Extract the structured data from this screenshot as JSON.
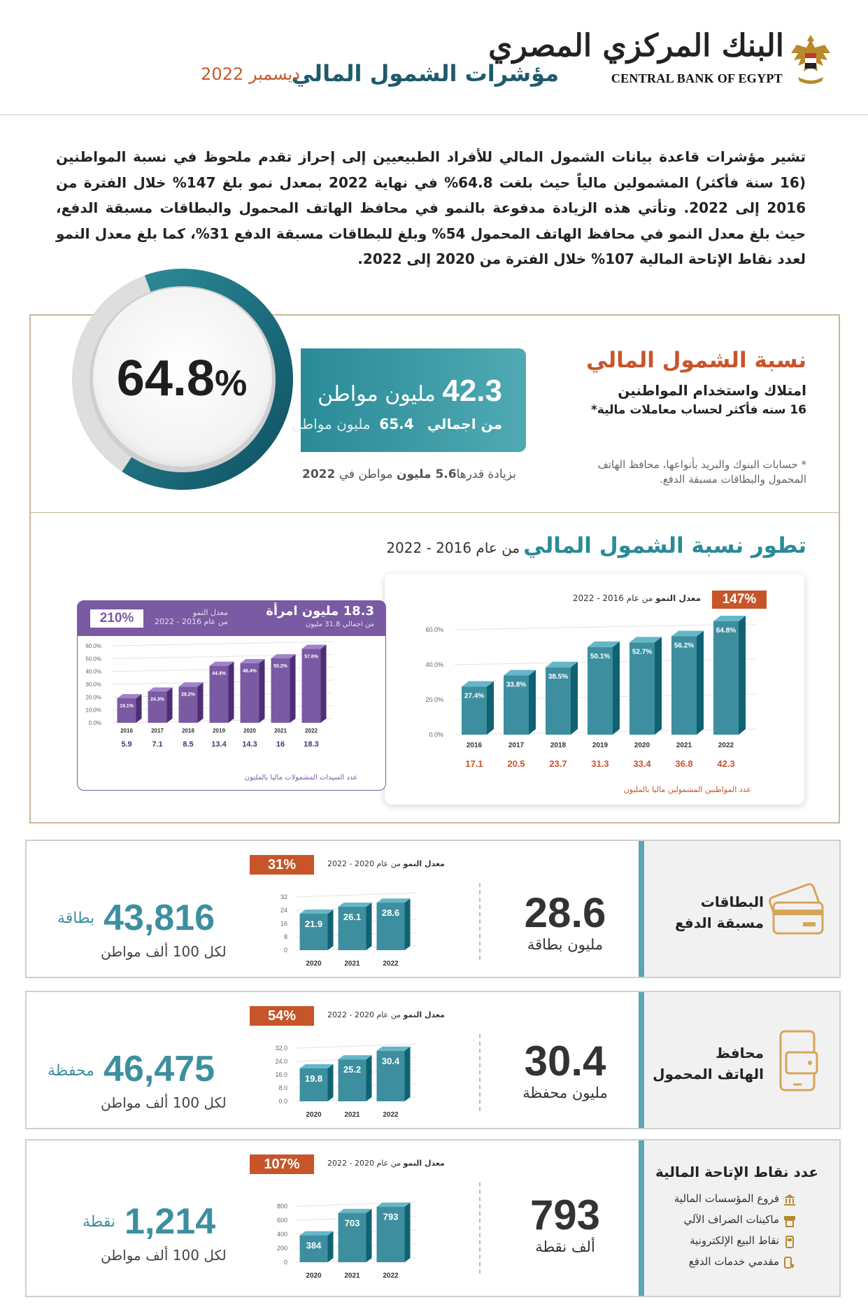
{
  "header": {
    "bank_name_ar": "البنك المركزي المصري",
    "bank_name_en": "CENTRAL BANK OF EGYPT",
    "title": "مؤشرات الشمول المالي",
    "date": "ديسمبر 2022"
  },
  "intro": "تشير مؤشرات قاعدة بيانات الشمول المالي للأفراد الطبيعيين إلى إحراز تقدم ملحوظ في نسبة المواطنين (16 سنة فأكثر) المشمولين مالياً حيث بلغت 64.8% في نهاية 2022 بمعدل نمو بلغ 147% خلال الفترة من 2016 إلى 2022. وتأتي هذه الزيادة مدفوعة بالنمو في محافظ الهاتف المحمول والبطاقات مسبقة الدفع، حيث بلغ معدل النمو في محافظ الهاتف المحمول 54% وبلغ للبطاقات مسبقة الدفع 31%، كما بلغ معدل النمو لعدد نقاط الإتاحة المالية 107% خلال الفترة من 2020 إلى 2022.",
  "inclusion": {
    "rate_value": "64.8",
    "rate_unit": "%",
    "rate_fraction": 0.648,
    "citizens_value": "42.3",
    "citizens_unit": "مليون مواطن",
    "total_prefix": "من اجمالي",
    "total_value": "65.4",
    "total_unit": "مليون مواطن",
    "increase_text": "بزيادة قدرها",
    "increase_value": "5.6 مليون",
    "increase_suffix": "مواطن في",
    "increase_year": "2022",
    "title": "نسبة الشمول المالي",
    "subtitle1": "امتلاك واستخدام المواطنين",
    "subtitle2": "16 سنه فأكثر لحساب معاملات مالية*",
    "note": "* حسابات البنوك والبريد بأنواعها، محافظ الهاتف المحمول والبطاقات مسبقة الدفع."
  },
  "evolution": {
    "title": "تطور نسبة الشمول المالي",
    "title_suffix": "من عام 2016 - 2022"
  },
  "chart_data": [
    {
      "type": "bar",
      "badge": "147%",
      "growth_label_bold": "معدل النمو",
      "growth_label": "من عام 2016 - 2022",
      "categories": [
        "2016",
        "2017",
        "2018",
        "2019",
        "2020",
        "2021",
        "2022"
      ],
      "values": [
        27.4,
        33.8,
        38.5,
        50.1,
        52.7,
        56.2,
        64.8
      ],
      "value_labels": [
        "27.4%",
        "33.8%",
        "38.5%",
        "50.1%",
        "52.7%",
        "56.2%",
        "64.8%"
      ],
      "ylim": [
        0,
        60
      ],
      "yticks": [
        "0.0%",
        "20.0%",
        "40.0%",
        "60.0%"
      ],
      "counts": [
        "17.1",
        "20.5",
        "23.7",
        "31.3",
        "33.4",
        "36.8",
        "42.3"
      ],
      "counts_caption": "عدد المواطنين المشمولين ماليا بالمليون",
      "color": "#3d8fa0"
    },
    {
      "type": "bar",
      "badge": "210%",
      "head_value": "18.3 مليون امرأة",
      "head_sub": "من اجمالي 31.8 مليون",
      "growth_label_bold": "معدل النمو",
      "growth_label": "من عام 2016 - 2022",
      "categories": [
        "2016",
        "2017",
        "2018",
        "2019",
        "2020",
        "2021",
        "2022"
      ],
      "values": [
        19.1,
        24.3,
        28.2,
        44.4,
        46.4,
        50.2,
        57.6
      ],
      "value_labels": [
        "19.1%",
        "24.3%",
        "28.2%",
        "44.4%",
        "46.4%",
        "50.2%",
        "57.6%"
      ],
      "ylim": [
        0,
        60
      ],
      "yticks": [
        "0.0%",
        "10.0%",
        "20.0%",
        "30.0%",
        "40.0%",
        "50.0%",
        "60.0%"
      ],
      "counts": [
        "5.9",
        "7.1",
        "8.5",
        "13.4",
        "14.3",
        "16",
        "18.3"
      ],
      "counts_caption": "عدد السيدات المشمولات ماليا بالمليون",
      "color": "#7a5aa3"
    },
    {
      "type": "bar",
      "badge": "31%",
      "growth_label_bold": "معدل النمو",
      "growth_label": "من عام 2020 - 2022",
      "categories": [
        "2020",
        "2021",
        "2022"
      ],
      "values": [
        21.9,
        26.1,
        28.6
      ],
      "value_labels": [
        "21.9",
        "26.1",
        "28.6"
      ],
      "ylim": [
        0,
        32
      ],
      "yticks": [
        "0",
        "8",
        "16",
        "24",
        "32"
      ],
      "color": "#3d8fa0"
    },
    {
      "type": "bar",
      "badge": "54%",
      "growth_label_bold": "معدل النمو",
      "growth_label": "من عام 2020 - 2022",
      "categories": [
        "2020",
        "2021",
        "2022"
      ],
      "values": [
        19.8,
        25.2,
        30.4
      ],
      "value_labels": [
        "19.8",
        "25.2",
        "30.4"
      ],
      "ylim": [
        0,
        32
      ],
      "yticks": [
        "0.0",
        "8.0",
        "16.0",
        "24.0",
        "32.0"
      ],
      "color": "#3d8fa0"
    },
    {
      "type": "bar",
      "badge": "107%",
      "growth_label_bold": "معدل النمو",
      "growth_label": "من عام 2020 - 2022",
      "categories": [
        "2020",
        "2021",
        "2022"
      ],
      "values": [
        384,
        703,
        793
      ],
      "value_labels": [
        "384",
        "703",
        "793"
      ],
      "ylim": [
        0,
        800
      ],
      "yticks": [
        "0",
        "200",
        "400",
        "600",
        "800"
      ],
      "color": "#3d8fa0"
    }
  ],
  "prepaid": {
    "label_line1": "البطاقات",
    "label_line2": "مسبقة الدفع",
    "value": "28.6",
    "unit": "مليون بطاقة",
    "per_value": "43,816",
    "per_unit": "بطاقة",
    "per_sub": "لكل 100 ألف مواطن"
  },
  "wallets": {
    "label_line1": "محافظ",
    "label_line2": "الهاتف المحمول",
    "value": "30.4",
    "unit": "مليون محفظة",
    "per_value": "46,475",
    "per_unit": "محفظة",
    "per_sub": "لكل 100 ألف مواطن"
  },
  "access": {
    "title": "عدد نقاط الإتاحة المالية",
    "items": [
      "فروع المؤسسات المالية",
      "ماكينات الصراف الآلي",
      "نقاط البيع الإلكترونية",
      "مقدمي خدمات الدفع"
    ],
    "value": "793",
    "unit": "ألف نقطة",
    "per_value": "1,214",
    "per_unit": "نقطة",
    "per_sub": "لكل 100 ألف مواطن"
  }
}
